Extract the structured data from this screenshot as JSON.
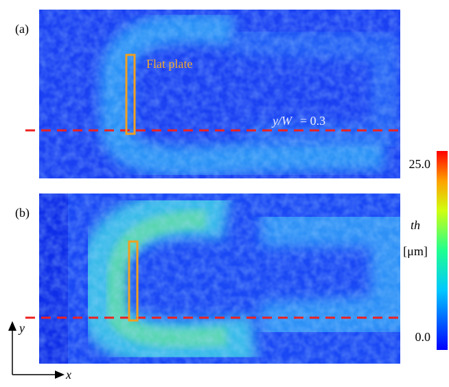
{
  "panels": [
    {
      "label": "(a)",
      "annotation": "Flat plate",
      "line_variable": "y/W",
      "line_value": "= 0.3"
    },
    {
      "label": "(b)"
    }
  ],
  "colorbar": {
    "symbol": "th",
    "unit": "[μm]",
    "ticks": [
      {
        "value": 0,
        "label": "0.0"
      },
      {
        "value": 25,
        "label": "25.0"
      }
    ],
    "range": [
      0,
      25
    ]
  },
  "axes": {
    "x": "x",
    "y": "y"
  }
}
